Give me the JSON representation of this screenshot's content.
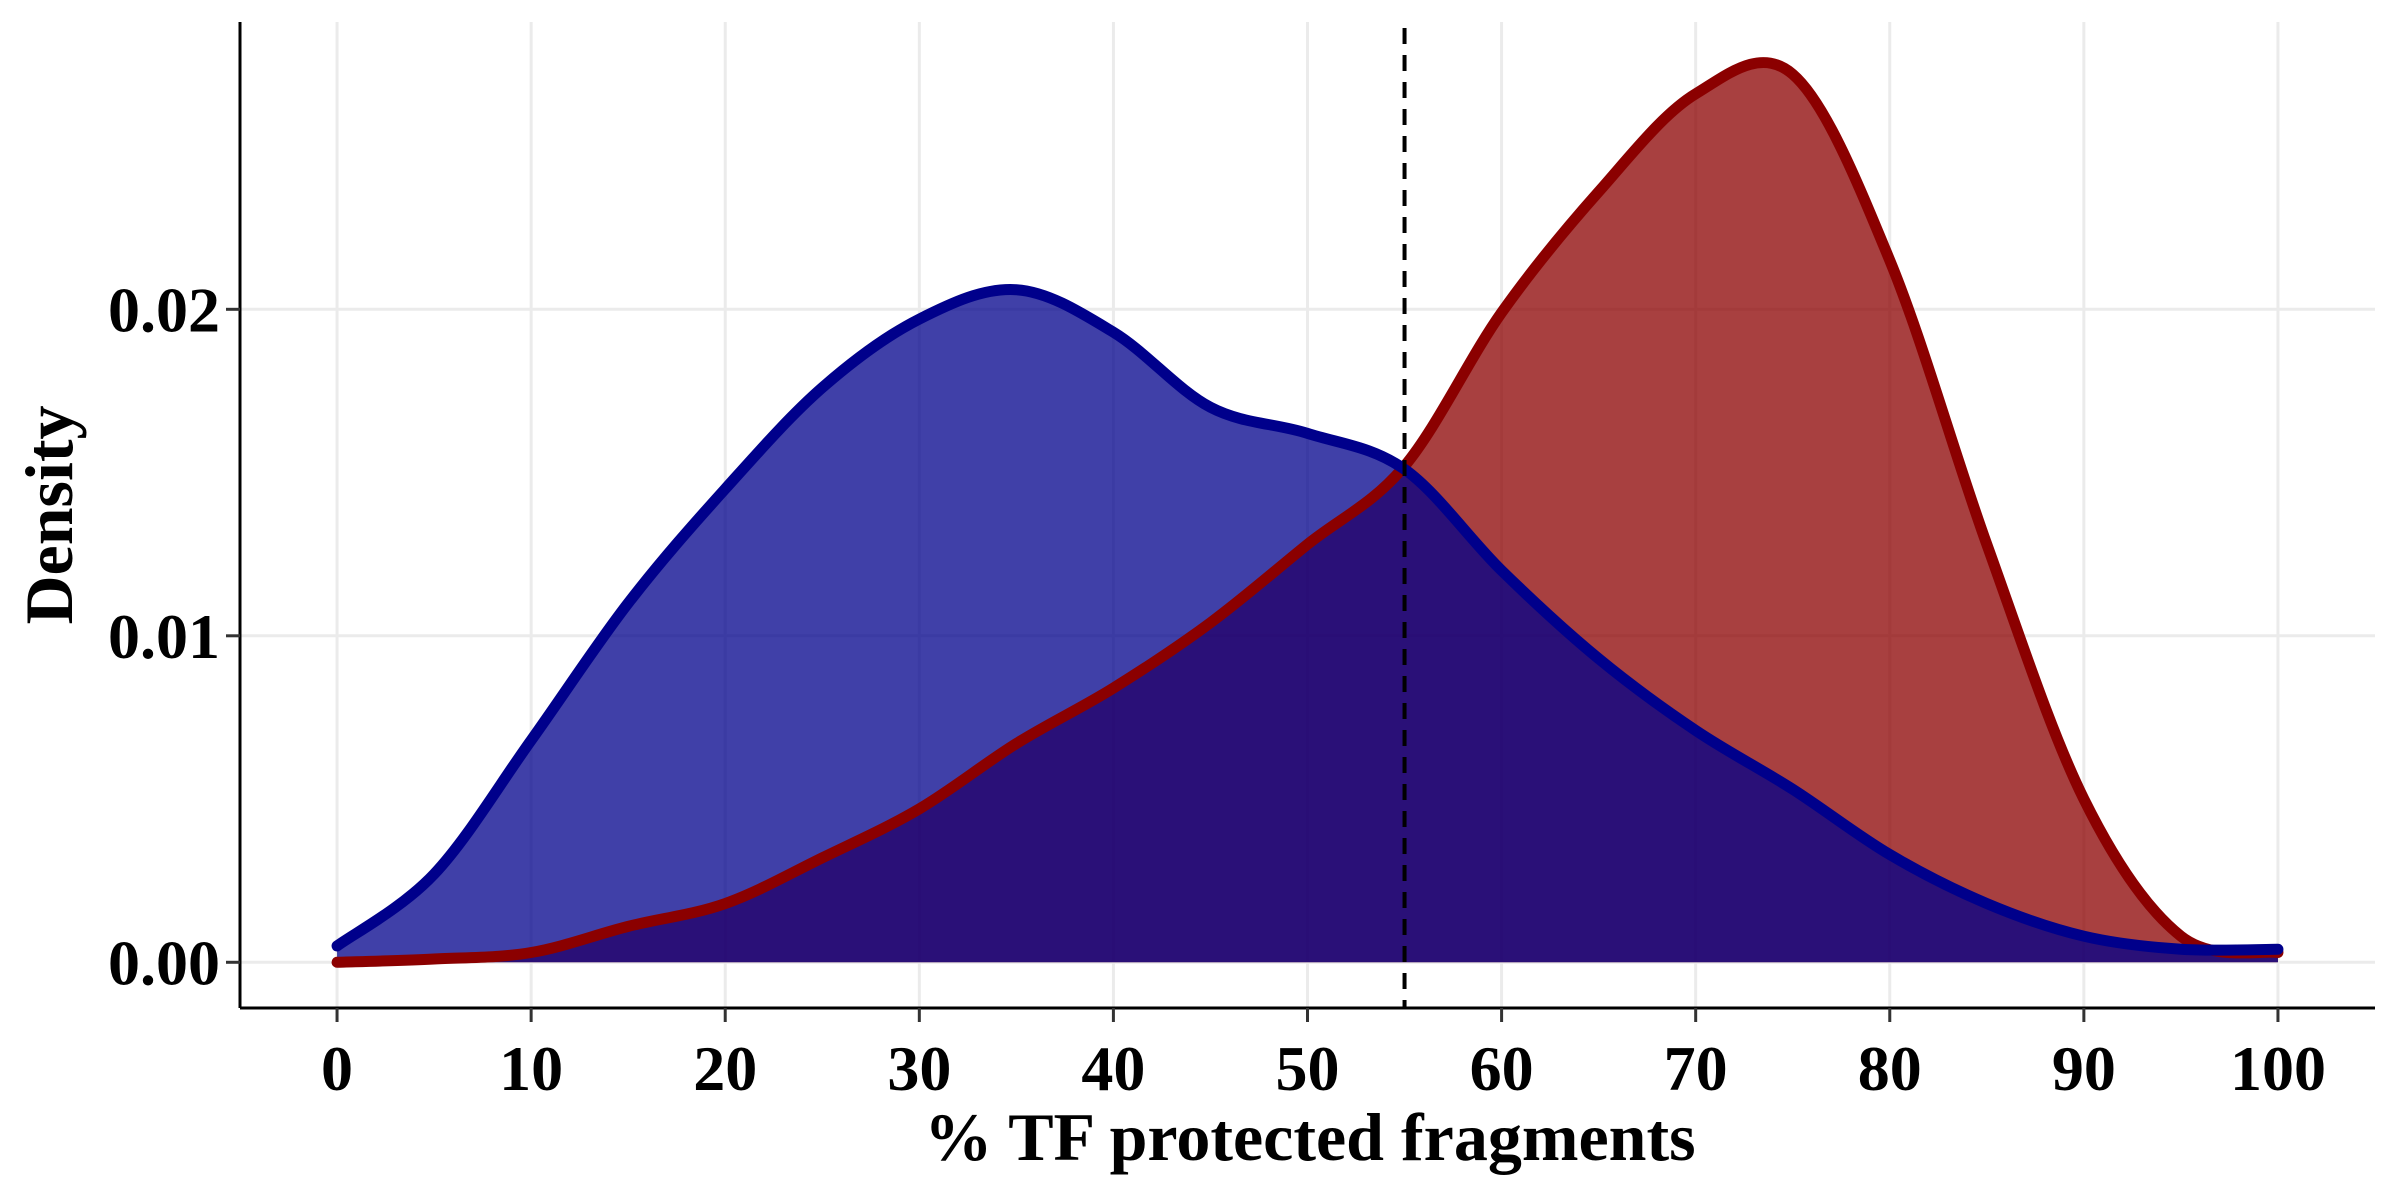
{
  "chart_data": {
    "type": "area",
    "title": "",
    "xlabel": "% TF protected fragments",
    "ylabel": "Density",
    "xlim": [
      -5,
      105
    ],
    "ylim": [
      -0.0014,
      0.0288
    ],
    "x_ticks": [
      0,
      10,
      20,
      30,
      40,
      50,
      60,
      70,
      80,
      90,
      100
    ],
    "x_tick_labels": [
      "0",
      "10",
      "20",
      "30",
      "40",
      "50",
      "60",
      "70",
      "80",
      "90",
      "100"
    ],
    "y_ticks": [
      0,
      0.01,
      0.02
    ],
    "y_tick_labels": [
      "0.00",
      "0.01",
      "0.02"
    ],
    "grid": true,
    "legend": "none",
    "vline": {
      "x": 55,
      "style": "dashed",
      "color": "#000000"
    },
    "series": [
      {
        "fill": "#8B0000",
        "fill_opacity": 0.75,
        "stroke": "#8B0000",
        "x": [
          0,
          5,
          10,
          15,
          20,
          25,
          30,
          35,
          40,
          45,
          50,
          55,
          60,
          65,
          70,
          75,
          80,
          85,
          90,
          95,
          100
        ],
        "y": [
          0.0,
          0.0001,
          0.0003,
          0.0011,
          0.0018,
          0.0032,
          0.0047,
          0.0067,
          0.0084,
          0.0104,
          0.0128,
          0.0152,
          0.0199,
          0.0236,
          0.0266,
          0.0272,
          0.0215,
          0.0128,
          0.005,
          0.0008,
          0.0003
        ]
      },
      {
        "fill": "#00008B",
        "fill_opacity": 0.75,
        "stroke": "#00008B",
        "x": [
          0,
          5,
          10,
          15,
          20,
          25,
          30,
          35,
          40,
          45,
          50,
          55,
          60,
          65,
          70,
          75,
          80,
          85,
          90,
          95,
          100
        ],
        "y": [
          0.0005,
          0.0027,
          0.0068,
          0.011,
          0.0145,
          0.0176,
          0.0197,
          0.0206,
          0.0193,
          0.017,
          0.0162,
          0.0151,
          0.012,
          0.0093,
          0.0071,
          0.0053,
          0.0033,
          0.0018,
          0.0008,
          0.0004,
          0.0004
        ]
      }
    ]
  }
}
